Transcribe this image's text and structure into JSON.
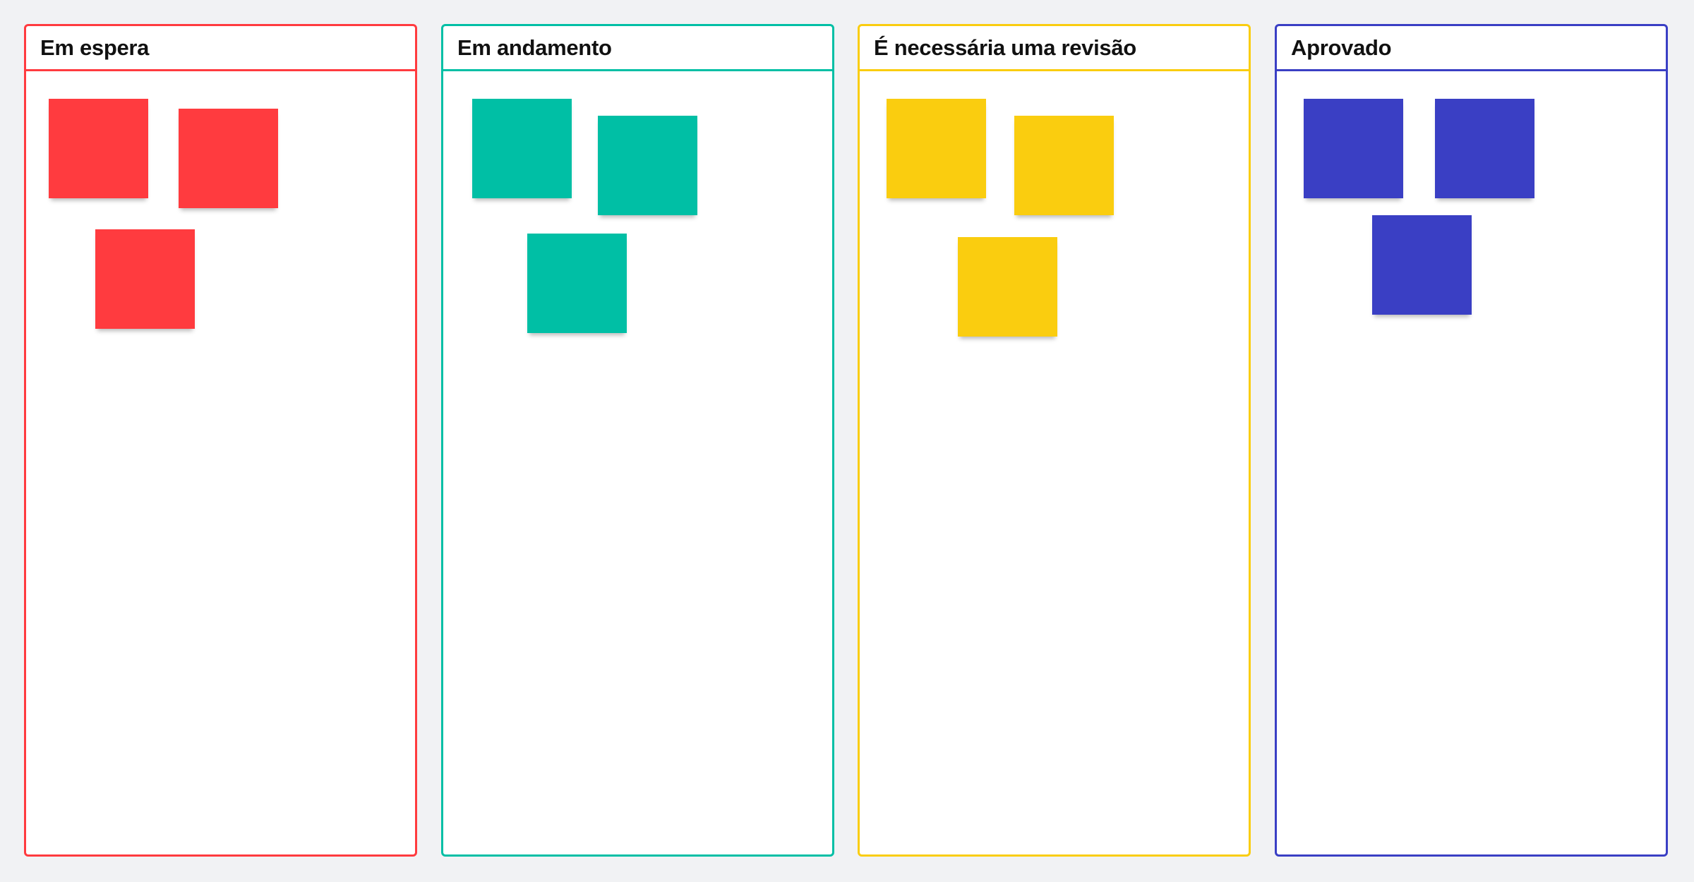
{
  "columns": [
    {
      "title": "Em espera",
      "color": "#FF3B3F",
      "notes": 3
    },
    {
      "title": "Em andamento",
      "color": "#00BFA5",
      "notes": 3
    },
    {
      "title": "É necessária uma revisão",
      "color": "#FACD0F",
      "notes": 3
    },
    {
      "title": "Aprovado",
      "color": "#3A3FC4",
      "notes": 3
    }
  ]
}
